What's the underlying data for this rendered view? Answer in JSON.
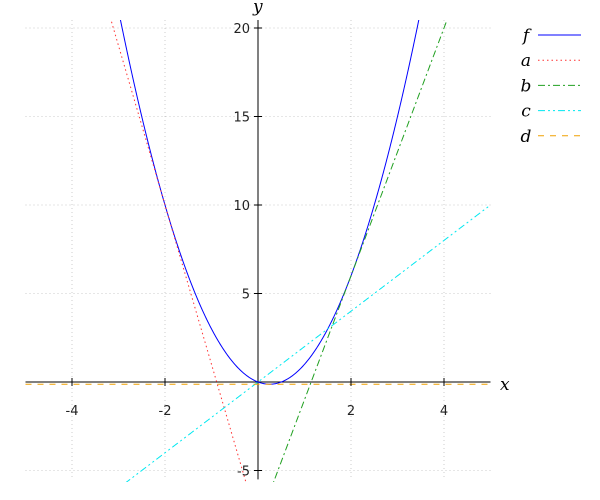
{
  "chart_data": {
    "type": "line",
    "xlabel": "x",
    "ylabel": "y",
    "xlim": [
      -5,
      5
    ],
    "ylim": [
      -5.5,
      20.45
    ],
    "xticks": [
      -4,
      -2,
      2,
      4
    ],
    "yticks": [
      -5,
      5,
      10,
      15,
      20
    ],
    "grid": true,
    "legend_position": "top-right",
    "series": [
      {
        "name": "f",
        "polynomial": [
          0,
          -1,
          2
        ],
        "color": "#0000ff",
        "dash": "solid"
      },
      {
        "name": "a",
        "polynomial": [
          -8,
          -9
        ],
        "color": "#ff3030",
        "dash": "dotted"
      },
      {
        "name": "b",
        "polynomial": [
          -8,
          7
        ],
        "color": "#20a020",
        "dash": "dashdot"
      },
      {
        "name": "c",
        "polynomial": [
          0,
          2
        ],
        "color": "#00e8f0",
        "dash": "dashdotdot"
      },
      {
        "name": "d",
        "polynomial": [
          -0.125
        ],
        "color": "#f0a000",
        "dash": "dashed"
      }
    ]
  }
}
